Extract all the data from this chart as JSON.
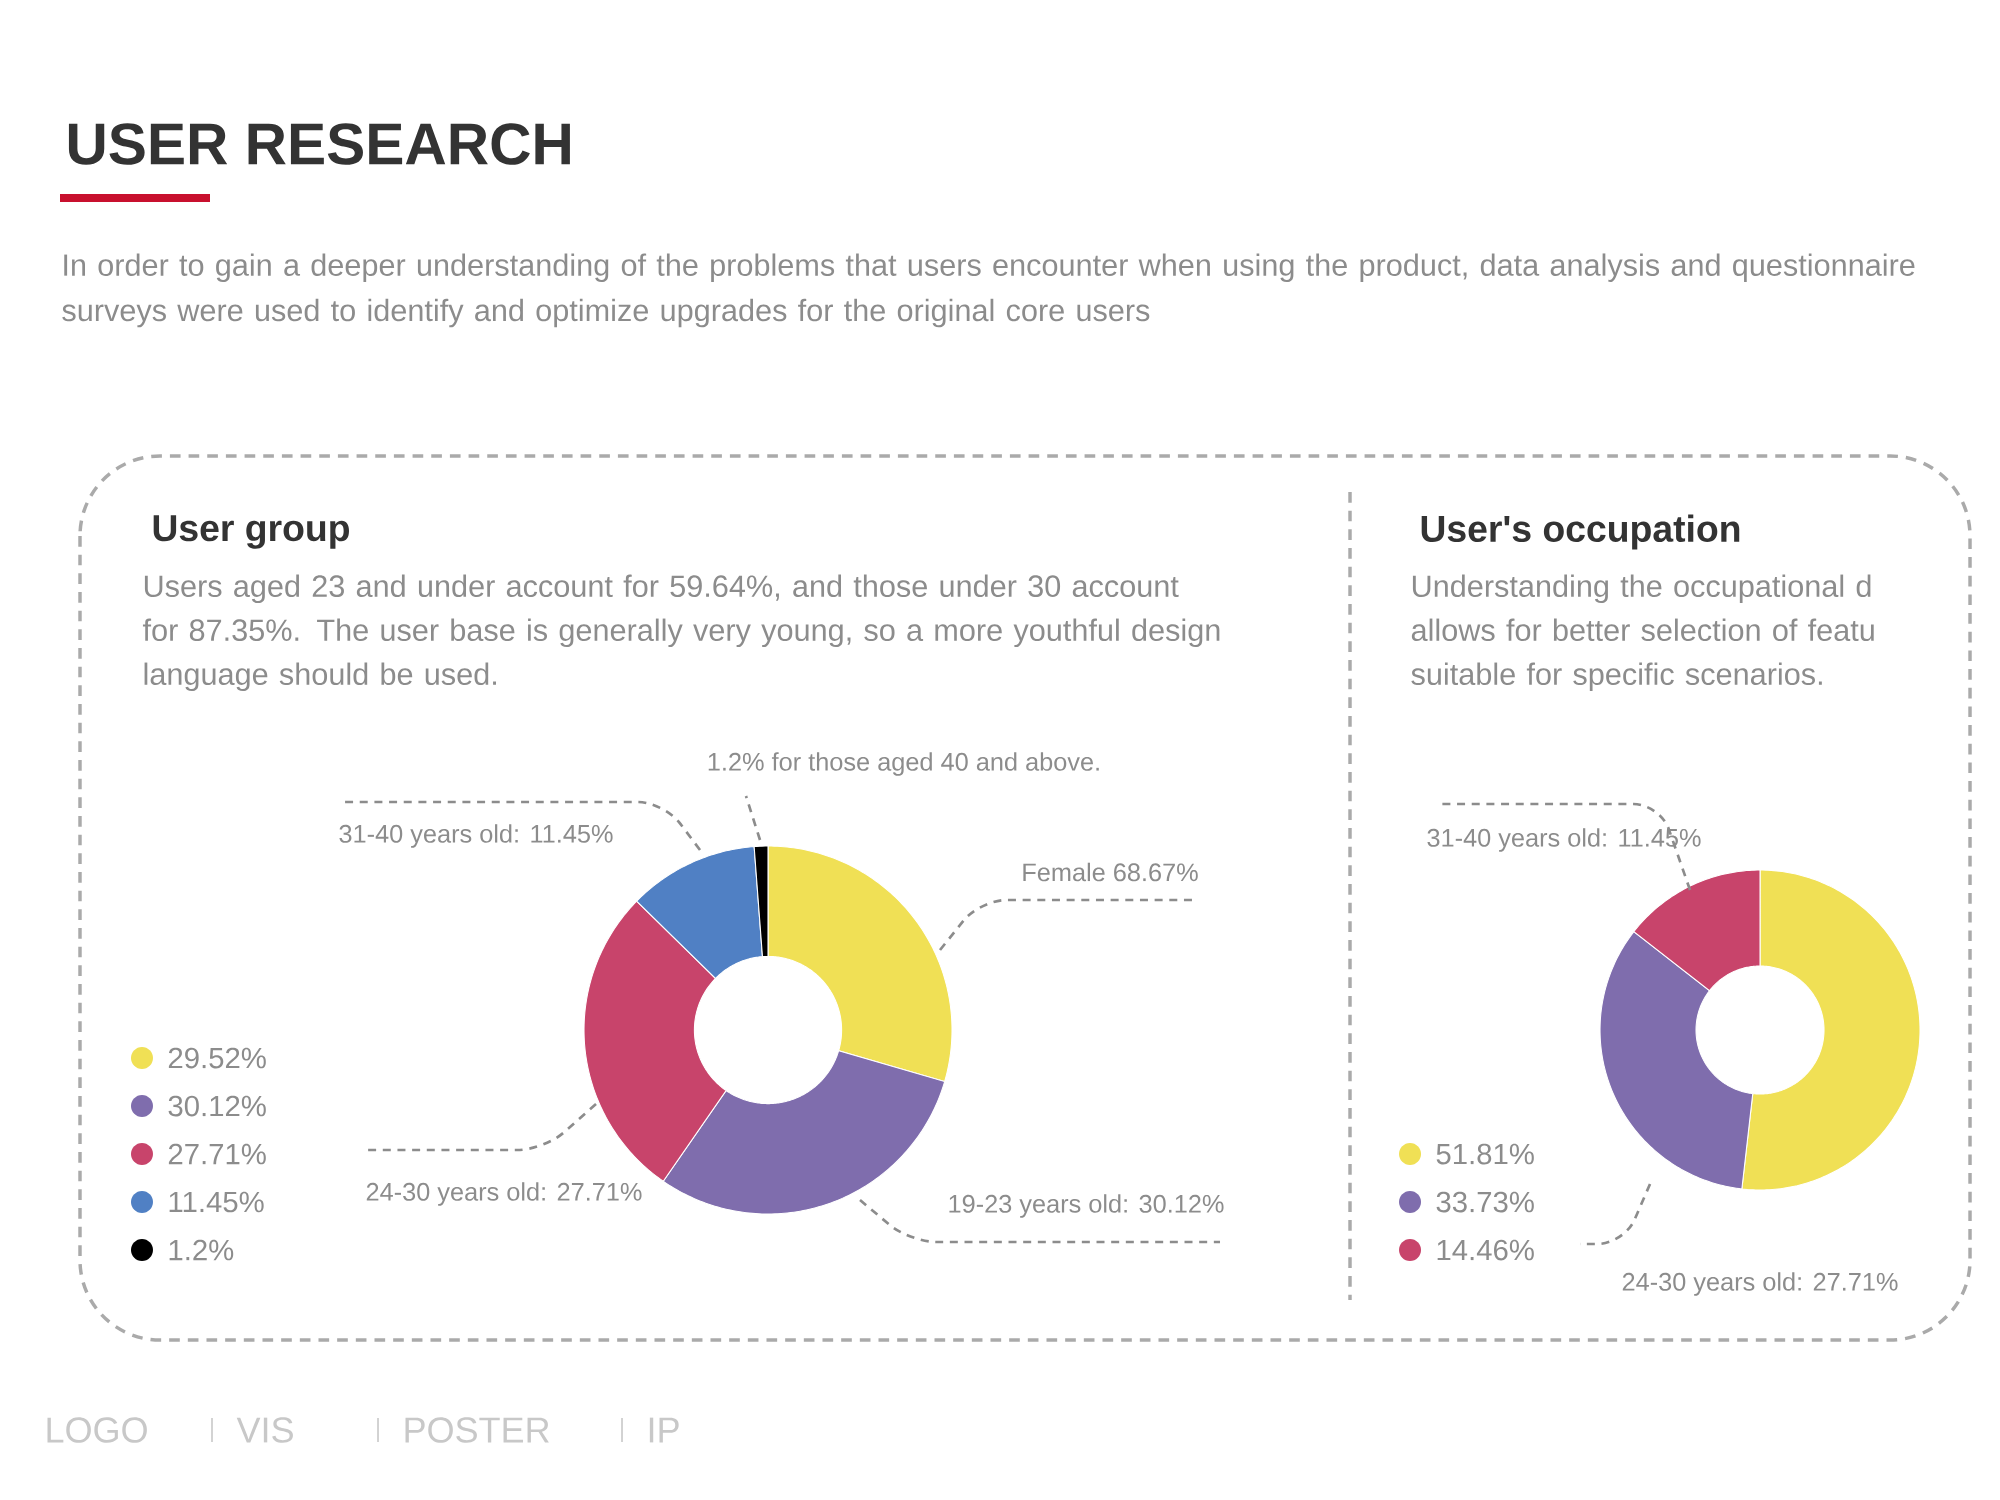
{
  "chart_data": [
    {
      "type": "other",
      "title": "USER RESEARCH",
      "subtitle": "In order to gain a deeper understanding of the problems that users encounter when using the product, data analysis and questionnaire surveys were used to identify and optimize upgrades for the original core users",
      "annotations": [
        "LOGO",
        "VIS",
        "POSTER",
        "IP"
      ]
    },
    {
      "type": "donut",
      "title": "User group",
      "subtitle": "Users aged 23 and under account for 59.64%, and those under 30 account for 87.35%. The user base is generally very young, so a more youthful design language should be used.",
      "categories": [
        "29.52%",
        "30.12%",
        "27.71%",
        "11.45%",
        "1.2%"
      ],
      "values": [
        29.52,
        30.12,
        27.71,
        11.45,
        1.2
      ],
      "colors": [
        "#f0e055",
        "#7f6dad",
        "#c8446b",
        "#5080c4",
        "#000000"
      ],
      "legend": "bottom left",
      "annotations": [
        "Female 68.67%",
        "19-23 years old: 30.12%",
        "24-30 years old: 27.71%",
        "31-40 years old: 11.45%",
        "1.2% for those aged 40 and above."
      ]
    },
    {
      "type": "donut",
      "title": "User's occupation",
      "subtitle": "Understanding the occupational d allows for better selection of featu suitable for specific scenarios.",
      "categories": [
        "51.81%",
        "33.73%",
        "14.46%"
      ],
      "values": [
        51.81,
        33.73,
        14.46
      ],
      "colors": [
        "#f0e055",
        "#7f6dad",
        "#c8446b"
      ],
      "legend": "bottom left",
      "annotations": [
        "31-40 years old: 11.45%",
        "24-30 years old: 27.71%"
      ]
    }
  ]
}
